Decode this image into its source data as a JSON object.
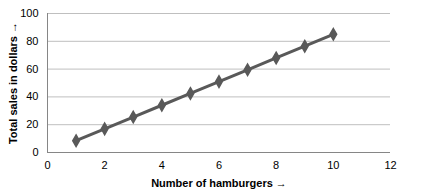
{
  "chart_data": {
    "type": "line",
    "x_label": "Number of hamburgers",
    "y_label": "Total sales in dollars",
    "x": [
      1,
      2,
      3,
      4,
      5,
      6,
      7,
      8,
      9,
      10
    ],
    "values": [
      8.5,
      17,
      25.5,
      34,
      42.5,
      51,
      59.5,
      68,
      76.5,
      85
    ],
    "color": "#595959",
    "marker": "diamond",
    "xlim": [
      0,
      12
    ],
    "xticks": [
      0,
      2,
      4,
      6,
      8,
      10,
      12
    ],
    "ylim": [
      0,
      100
    ],
    "yticks": [
      0,
      20,
      40,
      60,
      80,
      100
    ],
    "grid": true
  }
}
